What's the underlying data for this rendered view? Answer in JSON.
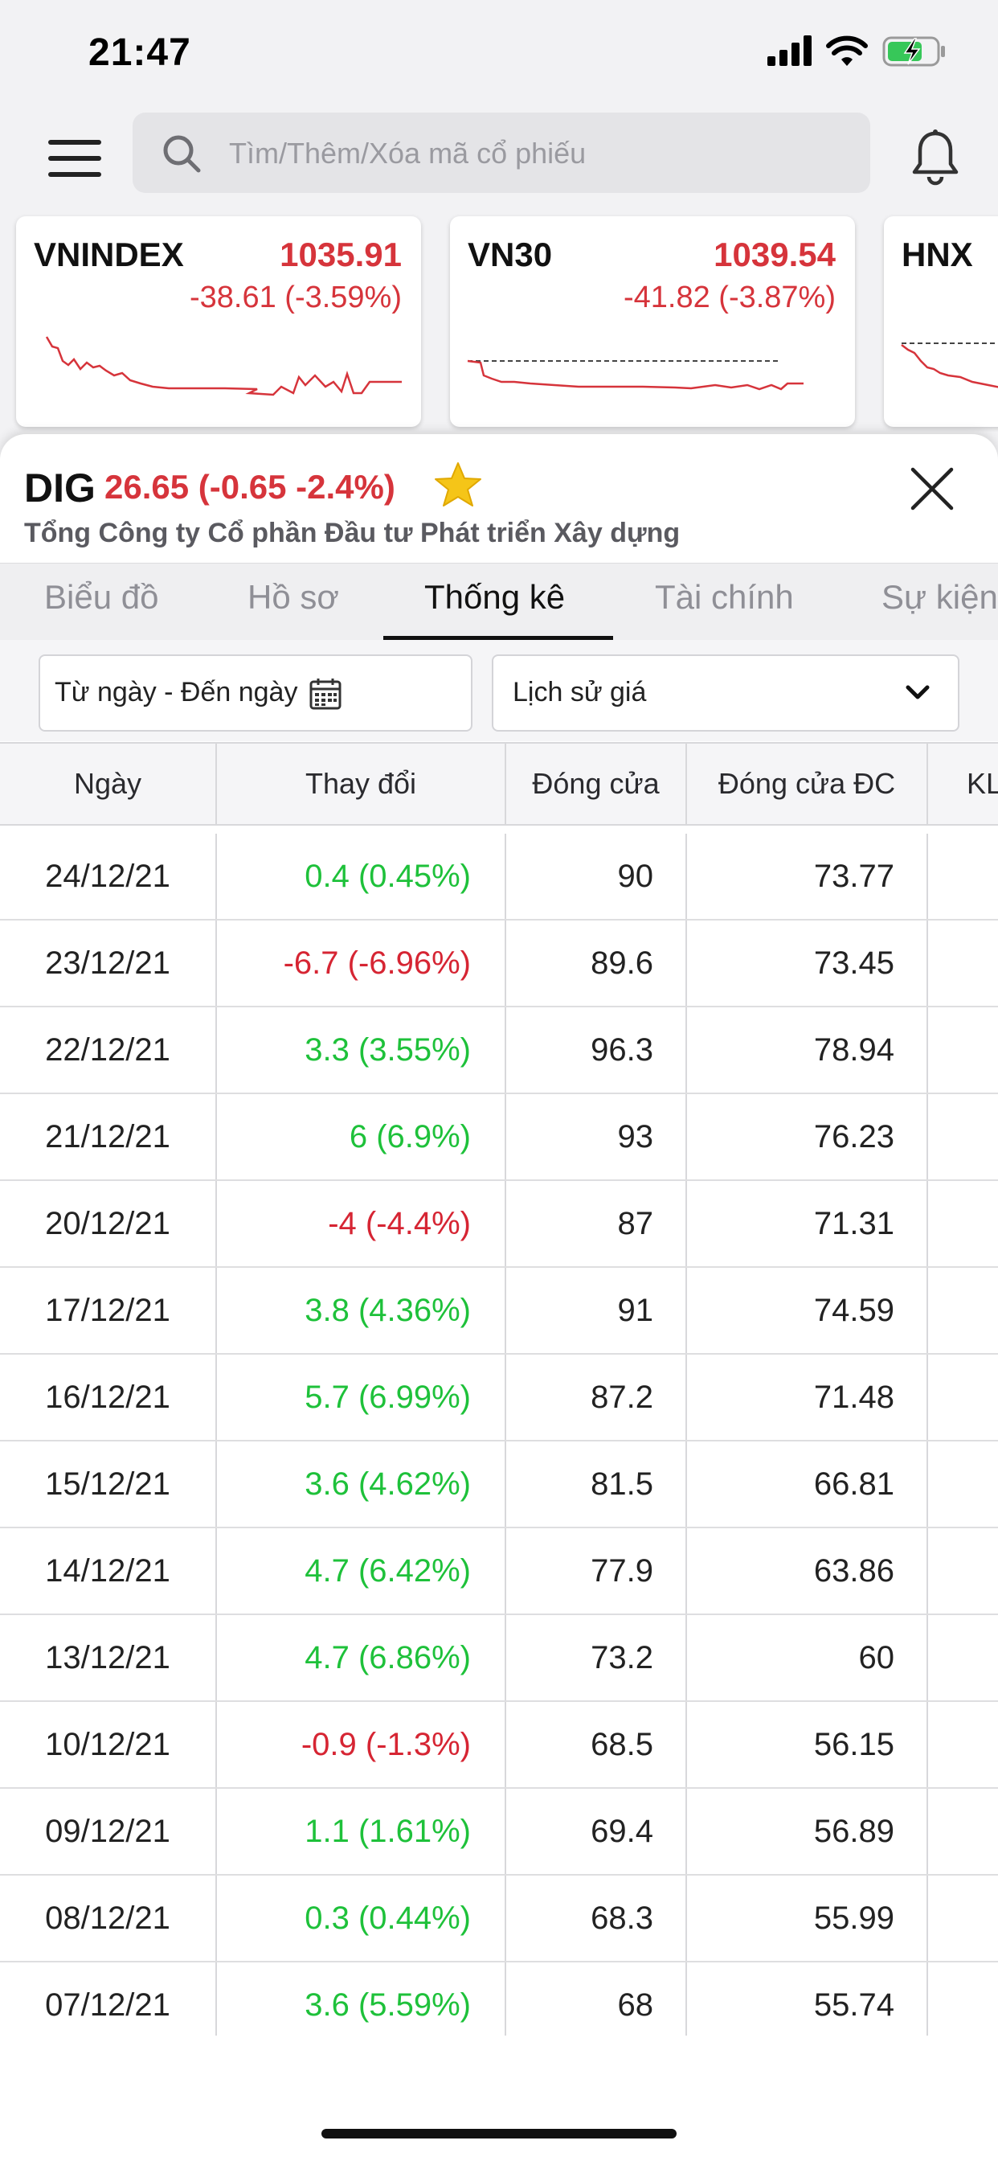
{
  "status_bar": {
    "time": "21:47"
  },
  "search": {
    "placeholder": "Tìm/Thêm/Xóa mã cổ phiếu"
  },
  "index_cards": [
    {
      "name": "VNINDEX",
      "price": "1035.91",
      "change": "-38.61 (-3.59%)"
    },
    {
      "name": "VN30",
      "price": "1039.54",
      "change": "-41.82 (-3.87%)"
    },
    {
      "name": "HNX",
      "price": "",
      "change": ""
    }
  ],
  "stock": {
    "symbol": "DIG",
    "price_line": "26.65 (-0.65 -2.4%)",
    "company": "Tổng Công ty Cổ phần Đầu tư Phát triển Xây dựng"
  },
  "tabs": [
    {
      "label": "Biểu đồ"
    },
    {
      "label": "Hồ sơ"
    },
    {
      "label": "Thống kê"
    },
    {
      "label": "Tài chính"
    },
    {
      "label": "Sự kiện"
    }
  ],
  "filters": {
    "date_range": "Từ ngày - Đến ngày",
    "type_select": "Lịch sử giá"
  },
  "table": {
    "headers": [
      "Ngày",
      "Thay đổi",
      "Đóng cửa",
      "Đóng cửa ĐC",
      "KL"
    ],
    "rows": [
      {
        "date": "24/12/21",
        "change": "0.4 (0.45%)",
        "dir": "up",
        "close": "90",
        "adj_close": "73.77"
      },
      {
        "date": "23/12/21",
        "change": "-6.7 (-6.96%)",
        "dir": "down",
        "close": "89.6",
        "adj_close": "73.45"
      },
      {
        "date": "22/12/21",
        "change": "3.3 (3.55%)",
        "dir": "up",
        "close": "96.3",
        "adj_close": "78.94"
      },
      {
        "date": "21/12/21",
        "change": "6 (6.9%)",
        "dir": "up",
        "close": "93",
        "adj_close": "76.23"
      },
      {
        "date": "20/12/21",
        "change": "-4 (-4.4%)",
        "dir": "down",
        "close": "87",
        "adj_close": "71.31"
      },
      {
        "date": "17/12/21",
        "change": "3.8 (4.36%)",
        "dir": "up",
        "close": "91",
        "adj_close": "74.59"
      },
      {
        "date": "16/12/21",
        "change": "5.7 (6.99%)",
        "dir": "up",
        "close": "87.2",
        "adj_close": "71.48"
      },
      {
        "date": "15/12/21",
        "change": "3.6 (4.62%)",
        "dir": "up",
        "close": "81.5",
        "adj_close": "66.81"
      },
      {
        "date": "14/12/21",
        "change": "4.7 (6.42%)",
        "dir": "up",
        "close": "77.9",
        "adj_close": "63.86"
      },
      {
        "date": "13/12/21",
        "change": "4.7 (6.86%)",
        "dir": "up",
        "close": "73.2",
        "adj_close": "60"
      },
      {
        "date": "10/12/21",
        "change": "-0.9 (-1.3%)",
        "dir": "down",
        "close": "68.5",
        "adj_close": "56.15"
      },
      {
        "date": "09/12/21",
        "change": "1.1 (1.61%)",
        "dir": "up",
        "close": "69.4",
        "adj_close": "56.89"
      },
      {
        "date": "08/12/21",
        "change": "0.3 (0.44%)",
        "dir": "up",
        "close": "68.3",
        "adj_close": "55.99"
      },
      {
        "date": "07/12/21",
        "change": "3.6 (5.59%)",
        "dir": "up",
        "close": "68",
        "adj_close": "55.74"
      }
    ]
  },
  "colors": {
    "up": "#1ec13a",
    "down": "#d62533",
    "index_down": "#d6343b",
    "star": "#f5c518"
  }
}
